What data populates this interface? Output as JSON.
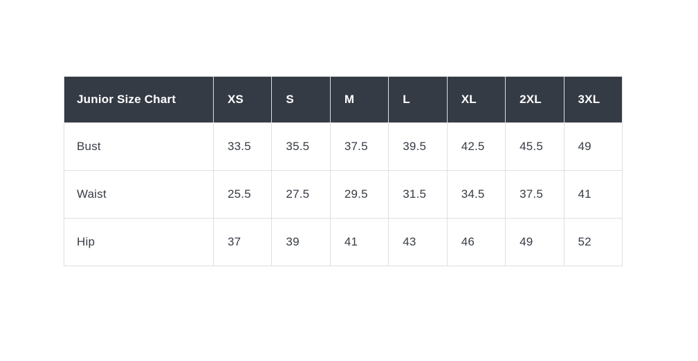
{
  "chart_data": {
    "type": "table",
    "title": "Junior Size Chart",
    "columns": [
      "XS",
      "S",
      "M",
      "L",
      "XL",
      "2XL",
      "3XL"
    ],
    "rows": [
      {
        "label": "Bust",
        "values": [
          "33.5",
          "35.5",
          "37.5",
          "39.5",
          "42.5",
          "45.5",
          "49"
        ]
      },
      {
        "label": "Waist",
        "values": [
          "25.5",
          "27.5",
          "29.5",
          "31.5",
          "34.5",
          "37.5",
          "41"
        ]
      },
      {
        "label": "Hip",
        "values": [
          "37",
          "39",
          "41",
          "43",
          "46",
          "49",
          "52"
        ]
      }
    ],
    "layout": {
      "header_position": "top",
      "grid": true
    },
    "colors": {
      "header_bg": "#353b45",
      "header_text": "#ffffff",
      "body_bg": "#ffffff",
      "body_text": "#363b44",
      "border": "#dfdfdf"
    }
  }
}
